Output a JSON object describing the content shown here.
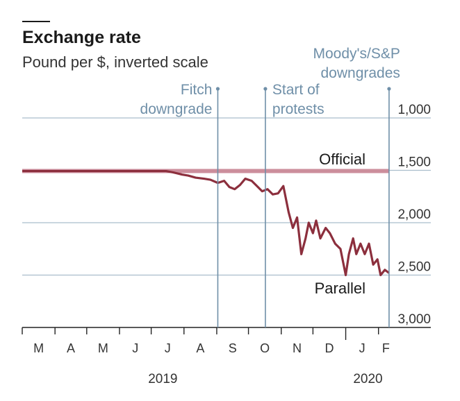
{
  "chart_data": {
    "type": "line",
    "title": "Exchange rate",
    "subtitle": "Pound per $, inverted scale",
    "y_inverted": true,
    "ylim": [
      1000,
      3000
    ],
    "yticks": [
      "1,000",
      "1,500",
      "2,000",
      "2,500",
      "3,000"
    ],
    "ytick_values": [
      1000,
      1500,
      2000,
      2500,
      3000
    ],
    "months": [
      "M",
      "A",
      "M",
      "J",
      "J",
      "A",
      "S",
      "O",
      "N",
      "D",
      "J",
      "F"
    ],
    "years": [
      "2019",
      "2020"
    ],
    "grid": true,
    "x_start": "2019-03-01",
    "x_end": "2020-02-15",
    "annotations": [
      {
        "label_lines": [
          "Fitch",
          "downgrade"
        ],
        "date": "2019-09-02",
        "align": "end"
      },
      {
        "label_lines": [
          "Start of",
          "protests"
        ],
        "date": "2019-10-17",
        "align": "start"
      },
      {
        "label_lines": [
          "Moody's/S&P",
          "downgrades"
        ],
        "date": "2020-02-11",
        "align": "end"
      }
    ],
    "series": [
      {
        "name": "Official",
        "color": "#cc8e9c",
        "x": [
          "2019-03-01",
          "2020-02-11"
        ],
        "y": [
          1507,
          1507
        ]
      },
      {
        "name": "Parallel",
        "color": "#8c2f3d",
        "x": [
          "2019-03-01",
          "2019-07-15",
          "2019-07-22",
          "2019-07-30",
          "2019-08-05",
          "2019-08-12",
          "2019-08-20",
          "2019-08-26",
          "2019-09-02",
          "2019-09-08",
          "2019-09-13",
          "2019-09-18",
          "2019-09-23",
          "2019-09-28",
          "2019-10-04",
          "2019-10-09",
          "2019-10-14",
          "2019-10-19",
          "2019-10-24",
          "2019-10-29",
          "2019-11-03",
          "2019-11-08",
          "2019-11-12",
          "2019-11-16",
          "2019-11-20",
          "2019-11-24",
          "2019-11-27",
          "2019-12-01",
          "2019-12-04",
          "2019-12-08",
          "2019-12-13",
          "2019-12-17",
          "2019-12-22",
          "2019-12-27",
          "2020-01-01",
          "2020-01-04",
          "2020-01-08",
          "2020-01-11",
          "2020-01-15",
          "2020-01-19",
          "2020-01-23",
          "2020-01-27",
          "2020-01-31",
          "2020-02-03",
          "2020-02-07",
          "2020-02-11"
        ],
        "y": [
          1507,
          1507,
          1520,
          1540,
          1550,
          1570,
          1580,
          1590,
          1620,
          1600,
          1660,
          1680,
          1640,
          1580,
          1600,
          1650,
          1700,
          1680,
          1730,
          1720,
          1650,
          1900,
          2050,
          1950,
          2300,
          2150,
          2000,
          2100,
          1980,
          2150,
          2050,
          2100,
          2200,
          2250,
          2500,
          2300,
          2150,
          2300,
          2200,
          2300,
          2200,
          2400,
          2350,
          2500,
          2450,
          2480
        ]
      }
    ]
  }
}
